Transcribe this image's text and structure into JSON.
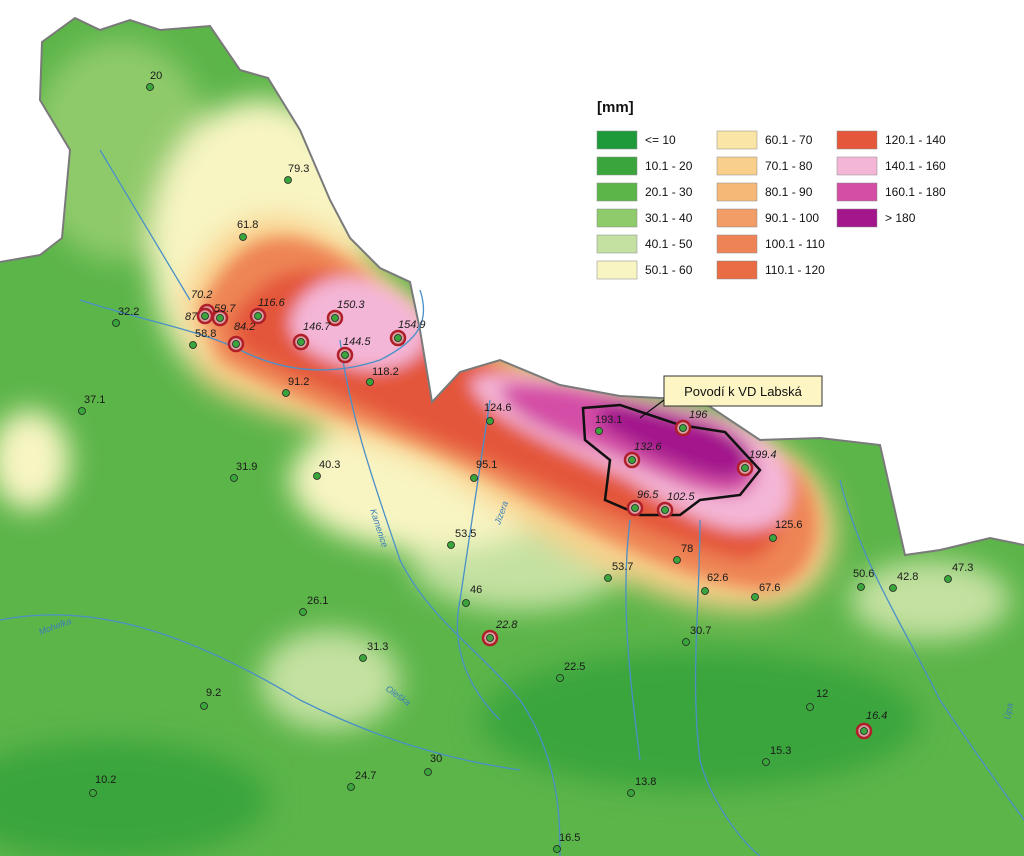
{
  "legend": {
    "title": "[mm]",
    "items": [
      {
        "label": "<= 10",
        "color": "#1f9a3b"
      },
      {
        "label": "10.1 - 20",
        "color": "#3aa53d"
      },
      {
        "label": "20.1 - 30",
        "color": "#5cb549"
      },
      {
        "label": "30.1 - 40",
        "color": "#8fca6b"
      },
      {
        "label": "40.1 - 50",
        "color": "#c4e1a1"
      },
      {
        "label": "50.1 - 60",
        "color": "#f8f5c3"
      },
      {
        "label": "60.1 - 70",
        "color": "#fbe5a6"
      },
      {
        "label": "70.1 - 80",
        "color": "#f9d08b"
      },
      {
        "label": "80.1 - 90",
        "color": "#f6b877"
      },
      {
        "label": "90.1 - 100",
        "color": "#f29c66"
      },
      {
        "label": "100.1 - 110",
        "color": "#ee8455"
      },
      {
        "label": "110.1 - 120",
        "color": "#e96c44"
      },
      {
        "label": "120.1 - 140",
        "color": "#e4573a"
      },
      {
        "label": "140.1 - 160",
        "color": "#f4b6d6"
      },
      {
        "label": "160.1 - 180",
        "color": "#d44ea6"
      },
      {
        "label": "> 180",
        "color": "#a3168c"
      }
    ]
  },
  "callout": {
    "label": "Povodí k VD Labská"
  },
  "stations": [
    {
      "label": "20"
    },
    {
      "label": "79.3"
    },
    {
      "label": "61.8"
    },
    {
      "label": "70.2"
    },
    {
      "label": "87"
    },
    {
      "label": "59.7"
    },
    {
      "label": "58.8"
    },
    {
      "label": "84.2"
    },
    {
      "label": "116.6"
    },
    {
      "label": "150.3"
    },
    {
      "label": "146.7"
    },
    {
      "label": "144.5"
    },
    {
      "label": "154.9"
    },
    {
      "label": "118.2"
    },
    {
      "label": "32.2"
    },
    {
      "label": "37.1"
    },
    {
      "label": "91.2"
    },
    {
      "label": "31.9"
    },
    {
      "label": "40.3"
    },
    {
      "label": "124.6"
    },
    {
      "label": "193.1"
    },
    {
      "label": "196"
    },
    {
      "label": "132.6"
    },
    {
      "label": "199.4"
    },
    {
      "label": "95.1"
    },
    {
      "label": "96.5"
    },
    {
      "label": "102.5"
    },
    {
      "label": "125.6"
    },
    {
      "label": "53.5"
    },
    {
      "label": "78"
    },
    {
      "label": "53.7"
    },
    {
      "label": "62.6"
    },
    {
      "label": "67.6"
    },
    {
      "label": "50.6"
    },
    {
      "label": "42.8"
    },
    {
      "label": "47.3"
    },
    {
      "label": "46"
    },
    {
      "label": "26.1"
    },
    {
      "label": "22.8"
    },
    {
      "label": "31.3"
    },
    {
      "label": "30.7"
    },
    {
      "label": "22.5"
    },
    {
      "label": "9.2"
    },
    {
      "label": "12"
    },
    {
      "label": "16.4"
    },
    {
      "label": "15.3"
    },
    {
      "label": "24.7"
    },
    {
      "label": "30"
    },
    {
      "label": "13.8"
    },
    {
      "label": "10.2"
    },
    {
      "label": "16.5"
    }
  ],
  "river_labels": [
    "Kamenice",
    "Jizera",
    "Oleška",
    "Mohelka",
    "Úpa"
  ]
}
